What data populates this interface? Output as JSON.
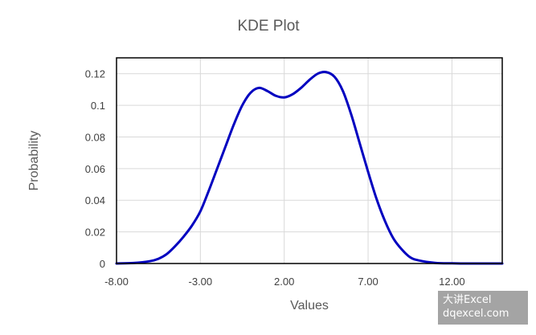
{
  "chart_data": {
    "type": "line",
    "title": "KDE Plot",
    "xlabel": "Values",
    "ylabel": "Probability",
    "xlim": [
      -8,
      15
    ],
    "ylim": [
      0,
      0.13
    ],
    "grid": true,
    "xticks": [
      -8,
      -3,
      2,
      7,
      12
    ],
    "xtick_labels": [
      "-8.00",
      "-3.00",
      "2.00",
      "7.00",
      "12.00"
    ],
    "yticks": [
      0,
      0.02,
      0.04,
      0.06,
      0.08,
      0.1,
      0.12
    ],
    "ytick_labels": [
      "0",
      "0.02",
      "0.04",
      "0.06",
      "0.08",
      "0.1",
      "0.12"
    ],
    "series": [
      {
        "color": "#0000c0",
        "x": [
          -8,
          -7,
          -6,
          -5.5,
          -5,
          -4.5,
          -4,
          -3.5,
          -3,
          -2.5,
          -2,
          -1.5,
          -1,
          -0.5,
          0,
          0.5,
          1,
          1.5,
          2,
          2.5,
          3,
          3.5,
          4,
          4.5,
          5,
          5.5,
          6,
          6.5,
          7,
          7.5,
          8,
          8.5,
          9,
          9.5,
          10,
          11,
          12,
          13,
          14,
          15
        ],
        "y": [
          0,
          0.0003,
          0.0015,
          0.003,
          0.006,
          0.011,
          0.017,
          0.024,
          0.033,
          0.046,
          0.06,
          0.074,
          0.088,
          0.1,
          0.108,
          0.111,
          0.109,
          0.106,
          0.105,
          0.107,
          0.111,
          0.116,
          0.12,
          0.121,
          0.118,
          0.109,
          0.094,
          0.076,
          0.058,
          0.041,
          0.027,
          0.016,
          0.009,
          0.004,
          0.002,
          0.0004,
          0.0001,
          0,
          0,
          0
        ]
      }
    ]
  },
  "watermark": {
    "line1": "大讲Excel",
    "line2": "dqexcel.com"
  }
}
